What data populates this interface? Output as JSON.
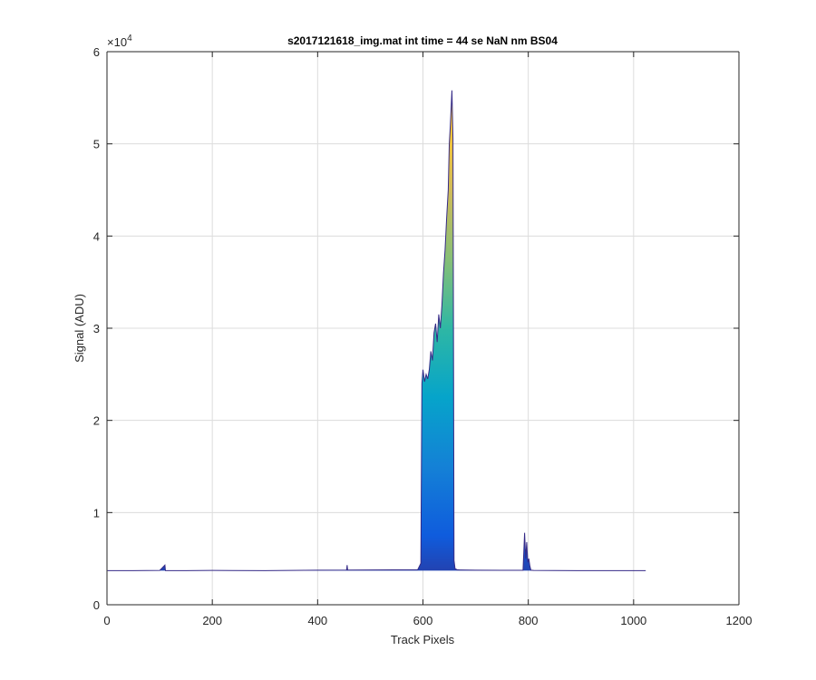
{
  "chart_data": {
    "type": "area",
    "title": "s2017121618_img.mat int time = 44 se  NaN nm BS04",
    "xlabel": "Track Pixels",
    "ylabel": "Signal (ADU)",
    "y_exponent_label": "×10",
    "y_exponent_power": "4",
    "xlim": [
      0,
      1200
    ],
    "ylim": [
      0,
      60000
    ],
    "x_ticks": [
      0,
      200,
      400,
      600,
      800,
      1000,
      1200
    ],
    "x_tick_labels": [
      "0",
      "200",
      "400",
      "600",
      "800",
      "1000",
      "1200"
    ],
    "y_ticks": [
      0,
      10000,
      20000,
      30000,
      40000,
      50000,
      60000
    ],
    "y_tick_labels": [
      "0",
      "1",
      "2",
      "3",
      "4",
      "5",
      "6"
    ],
    "grid": true,
    "baseline": 3700,
    "colormap": [
      "#352a87",
      "#0f5cdd",
      "#1481d6",
      "#06a4ca",
      "#2eb7a4",
      "#87bf77",
      "#d1bb59",
      "#fec832",
      "#f9fb0e"
    ],
    "series": [
      {
        "x": [
          1,
          50,
          100,
          110,
          111,
          112,
          150,
          200,
          300,
          400,
          455,
          456,
          457,
          500,
          590,
          596,
          598,
          600,
          603,
          606,
          609,
          612,
          615,
          618,
          621,
          624,
          627,
          630,
          633,
          636,
          639,
          642,
          645,
          648,
          650,
          652,
          655,
          657,
          659,
          661,
          665,
          670,
          700,
          750,
          790,
          793,
          795,
          797,
          799,
          801,
          803,
          805,
          810,
          850,
          900,
          950,
          1000,
          1023
        ],
        "y": [
          3700,
          3700,
          3720,
          4300,
          3700,
          3700,
          3700,
          3720,
          3700,
          3750,
          3760,
          4300,
          3760,
          3780,
          3800,
          4500,
          24000,
          25500,
          24200,
          25000,
          24500,
          25500,
          27500,
          26500,
          29500,
          30500,
          28500,
          31500,
          30000,
          32500,
          36000,
          38500,
          42000,
          45000,
          50000,
          52000,
          55800,
          50500,
          4800,
          3900,
          3800,
          3780,
          3750,
          3740,
          3740,
          7800,
          5000,
          6800,
          4600,
          5000,
          4200,
          3750,
          3720,
          3710,
          3700,
          3700,
          3700,
          3700
        ]
      }
    ]
  }
}
